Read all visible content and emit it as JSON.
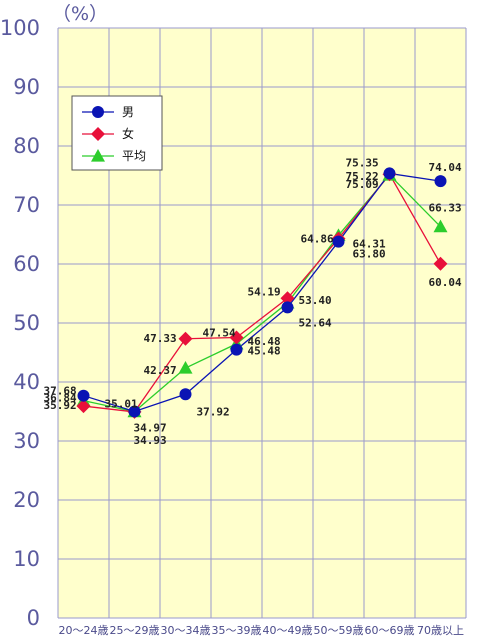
{
  "chart_data": {
    "type": "line",
    "unit_label": "（%）",
    "ylim": [
      0,
      100
    ],
    "yticks": [
      "0",
      "10",
      "20",
      "30",
      "40",
      "50",
      "60",
      "70",
      "80",
      "90",
      "100"
    ],
    "categories": [
      "20～24歳",
      "25～29歳",
      "30～34歳",
      "35～39歳",
      "40～49歳",
      "50～59歳",
      "60～69歳",
      "70歳以上"
    ],
    "grid": true,
    "legend_position": "top-left",
    "colors": {
      "background": "#ffffcc",
      "grid": "#9a9acc",
      "男": "#0a14b4",
      "女": "#e8103a",
      "平均": "#2ccd2c"
    },
    "series": [
      {
        "name": "男",
        "marker": "circle",
        "values": [
          37.68,
          35.01,
          37.92,
          45.48,
          52.64,
          63.8,
          75.35,
          74.04
        ]
      },
      {
        "name": "女",
        "marker": "diamond",
        "values": [
          35.92,
          34.93,
          47.33,
          47.54,
          54.19,
          64.31,
          75.22,
          60.04
        ]
      },
      {
        "name": "平均",
        "marker": "triangle",
        "values": [
          36.84,
          34.97,
          42.37,
          46.48,
          53.4,
          64.86,
          75.09,
          66.33
        ]
      }
    ],
    "data_labels": [
      {
        "series": "男",
        "index": 0,
        "text": "37.68"
      },
      {
        "series": "平均",
        "index": 0,
        "text": "36.84"
      },
      {
        "series": "女",
        "index": 0,
        "text": "35.92"
      },
      {
        "series": "男",
        "index": 1,
        "text": "35.01"
      },
      {
        "series": "平均",
        "index": 1,
        "text": "34.97"
      },
      {
        "series": "女",
        "index": 1,
        "text": "34.93"
      },
      {
        "series": "女",
        "index": 2,
        "text": "47.33"
      },
      {
        "series": "平均",
        "index": 2,
        "text": "42.37"
      },
      {
        "series": "男",
        "index": 2,
        "text": "37.92"
      },
      {
        "series": "女",
        "index": 3,
        "text": "47.54"
      },
      {
        "series": "平均",
        "index": 3,
        "text": "46.48"
      },
      {
        "series": "男",
        "index": 3,
        "text": "45.48"
      },
      {
        "series": "女",
        "index": 4,
        "text": "54.19"
      },
      {
        "series": "平均",
        "index": 4,
        "text": "53.40"
      },
      {
        "series": "男",
        "index": 4,
        "text": "52.64"
      },
      {
        "series": "平均",
        "index": 5,
        "text": "64.86"
      },
      {
        "series": "女",
        "index": 5,
        "text": "64.31"
      },
      {
        "series": "男",
        "index": 5,
        "text": "63.80"
      },
      {
        "series": "男",
        "index": 6,
        "text": "75.35"
      },
      {
        "series": "女",
        "index": 6,
        "text": "75.22"
      },
      {
        "series": "平均",
        "index": 6,
        "text": "75.09"
      },
      {
        "series": "男",
        "index": 7,
        "text": "74.04"
      },
      {
        "series": "平均",
        "index": 7,
        "text": "66.33"
      },
      {
        "series": "女",
        "index": 7,
        "text": "60.04"
      }
    ]
  }
}
